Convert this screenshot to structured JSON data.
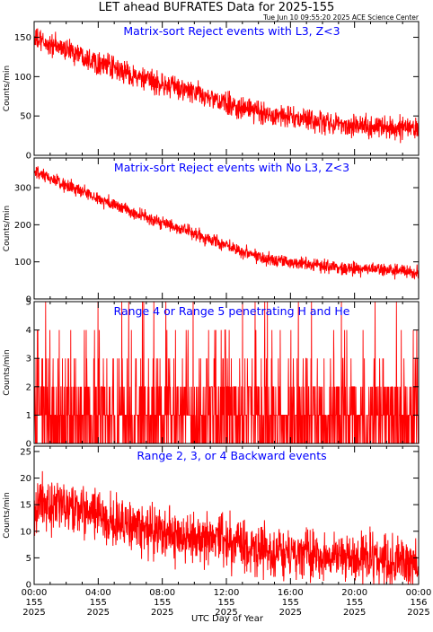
{
  "title": "LET ahead BUFRATES Data for 2025-155",
  "timestamp": "Tue Jun 10 09:55:20 2025 ACE Science Center",
  "xaxis_label": "UTC Day of Year",
  "chart_data": [
    {
      "type": "line",
      "subtitle": "Matrix-sort Reject events with L3, Z<3",
      "ylabel": "Counts/min",
      "ylim": [
        0,
        170
      ],
      "yticks": [
        0,
        50,
        100,
        150
      ],
      "color": "#ff0000",
      "subtitle_color": "#0000ff",
      "x_hours": [
        0,
        1,
        2,
        3,
        4,
        5,
        6,
        7,
        8,
        9,
        10,
        11,
        12,
        13,
        14,
        15,
        16,
        17,
        18,
        19,
        20,
        21,
        22,
        23,
        24
      ],
      "values": [
        148,
        140,
        135,
        128,
        118,
        110,
        103,
        95,
        90,
        85,
        80,
        72,
        65,
        60,
        55,
        52,
        48,
        45,
        42,
        40,
        38,
        37,
        35,
        34,
        35
      ],
      "noise_amplitude": 12
    },
    {
      "type": "line",
      "subtitle": "Matrix-sort Reject events with No L3, Z<3",
      "ylabel": "Counts/min",
      "ylim": [
        0,
        380
      ],
      "yticks": [
        0,
        100,
        200,
        300
      ],
      "color": "#ff0000",
      "subtitle_color": "#0000ff",
      "x_hours": [
        0,
        1,
        2,
        3,
        4,
        5,
        6,
        7,
        8,
        9,
        10,
        11,
        12,
        13,
        14,
        15,
        16,
        17,
        18,
        19,
        20,
        21,
        22,
        23,
        24
      ],
      "values": [
        340,
        325,
        305,
        290,
        270,
        255,
        235,
        220,
        205,
        190,
        175,
        160,
        145,
        130,
        115,
        105,
        100,
        95,
        90,
        85,
        82,
        80,
        78,
        75,
        72
      ],
      "noise_amplitude": 15
    },
    {
      "type": "line",
      "subtitle": "Range 4 or Range 5 penetrating H and He",
      "ylabel": "Counts/min",
      "ylim": [
        0,
        5
      ],
      "yticks": [
        0,
        1,
        2,
        3,
        4,
        5
      ],
      "color": "#ff0000",
      "subtitle_color": "#0000ff",
      "discrete_levels": [
        0,
        1,
        2,
        3,
        4,
        5
      ],
      "level_weights": [
        0.35,
        0.38,
        0.18,
        0.06,
        0.02,
        0.01
      ],
      "mean_level": 0.9
    },
    {
      "type": "line",
      "subtitle": "Range 2, 3, or 4 Backward events",
      "ylabel": "Counts/min",
      "ylim": [
        0,
        26
      ],
      "yticks": [
        0,
        5,
        10,
        15,
        20,
        25
      ],
      "color": "#ff0000",
      "subtitle_color": "#0000ff",
      "x_hours": [
        0,
        1,
        2,
        3,
        4,
        5,
        6,
        7,
        8,
        9,
        10,
        11,
        12,
        13,
        14,
        15,
        16,
        17,
        18,
        19,
        20,
        21,
        22,
        23,
        24
      ],
      "values": [
        15,
        15,
        14,
        14,
        13,
        12,
        11,
        10,
        10,
        9,
        9,
        8,
        8,
        7,
        7,
        6,
        6,
        6,
        5,
        5,
        5,
        5,
        4,
        4,
        4
      ],
      "noise_amplitude": 4
    }
  ],
  "x_ticks": [
    {
      "time": "00:00",
      "day": "155",
      "year": "2025"
    },
    {
      "time": "04:00",
      "day": "155",
      "year": "2025"
    },
    {
      "time": "08:00",
      "day": "155",
      "year": "2025"
    },
    {
      "time": "12:00",
      "day": "155",
      "year": "2025"
    },
    {
      "time": "16:00",
      "day": "155",
      "year": "2025"
    },
    {
      "time": "20:00",
      "day": "155",
      "year": "2025"
    },
    {
      "time": "00:00",
      "day": "156",
      "year": "2025"
    }
  ],
  "xlim_hours": [
    0,
    24
  ]
}
